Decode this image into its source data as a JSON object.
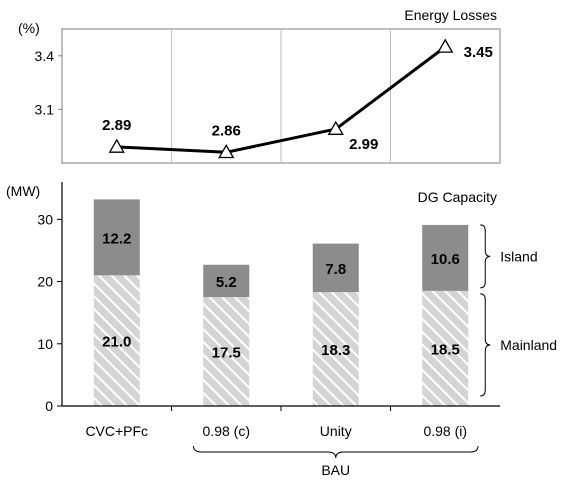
{
  "chart_data": [
    {
      "type": "line",
      "title": "Energy Losses",
      "ylabel": "(%)",
      "categories": [
        "CVC+PFc",
        "0.98 (c)",
        "Unity",
        "0.98 (i)"
      ],
      "values": [
        2.89,
        2.86,
        2.99,
        3.45
      ],
      "value_labels": [
        "2.89",
        "2.86",
        "2.99",
        "3.45"
      ],
      "yticks": [
        "3.4",
        "3.1"
      ],
      "ylim": [
        2.8,
        3.55
      ],
      "grid": true,
      "marker": "triangle"
    },
    {
      "type": "bar",
      "stacked": true,
      "title": "DG Capacity",
      "ylabel": "(MW)",
      "categories": [
        "CVC+PFc",
        "0.98 (c)",
        "Unity",
        "0.98 (i)"
      ],
      "series": [
        {
          "name": "Mainland",
          "values": [
            21.0,
            17.5,
            18.3,
            18.5
          ],
          "labels": [
            "21.0",
            "17.5",
            "18.3",
            "18.5"
          ],
          "color": "#c8c8c8",
          "pattern": "hatch"
        },
        {
          "name": "Island",
          "values": [
            12.2,
            5.2,
            7.8,
            10.6
          ],
          "labels": [
            "12.2",
            "5.2",
            "7.8",
            "10.6"
          ],
          "color": "#8c8c8c"
        }
      ],
      "yticks": [
        "30",
        "20",
        "10",
        "0"
      ],
      "ylim": [
        0,
        36
      ],
      "group_label": "BAU"
    }
  ]
}
